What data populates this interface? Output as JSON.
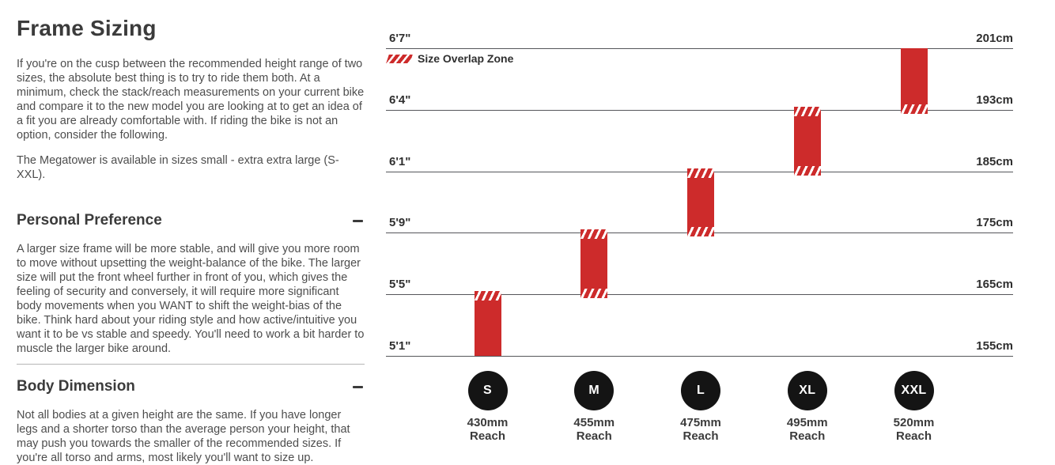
{
  "left": {
    "title": "Frame Sizing",
    "intro": "If you're on the cusp between the recommended height range of two sizes, the absolute best thing is to try to ride them both. At a minimum, check the stack/reach measurements on your current bike and compare it to the new model you are looking at to get an idea of a fit you are already comfortable with. If riding the bike is not an option, consider the following.",
    "availability": "The Megatower is available in sizes small - extra extra large (S-XXL).",
    "sections": [
      {
        "heading": "Personal Preference",
        "toggle_state": "expanded",
        "body": "A larger size frame will be more stable, and will give you more room to move without upsetting the weight-balance of the bike. The larger size will put the front wheel further in front of you, which gives the feeling of security and conversely, it will require more significant body movements when you WANT to shift the weight-bias of the bike. Think hard about your riding style and how active/intuitive you want it to be vs stable and speedy. You'll need to work a bit harder to muscle the larger bike around."
      },
      {
        "heading": "Body Dimension",
        "toggle_state": "expanded",
        "body": "Not all bodies at a given height are the same. If you have longer legs and a shorter torso than the average person your height, that may push you towards the smaller of the recommended sizes. If you're all torso and arms, most likely you'll want to size up."
      }
    ]
  },
  "chart_data": {
    "type": "bar",
    "subtype": "vertical-range-bars",
    "title": "",
    "legend": {
      "label": "Size Overlap Zone",
      "position": "top-left",
      "swatch": "red-white-diagonal-hatch"
    },
    "grid": true,
    "height_lines": [
      {
        "ft": "6'7\"",
        "cm": "201cm"
      },
      {
        "ft": "6'4\"",
        "cm": "193cm"
      },
      {
        "ft": "6'1\"",
        "cm": "185cm"
      },
      {
        "ft": "5'9\"",
        "cm": "175cm"
      },
      {
        "ft": "5'5\"",
        "cm": "165cm"
      },
      {
        "ft": "5'1\"",
        "cm": "155cm"
      }
    ],
    "sizes": [
      {
        "label": "S",
        "reach": "430mm",
        "reach_mm": 430,
        "reach_caption": "Reach",
        "height_from_ft": "5'1\"",
        "height_to_ft": "5'5\"",
        "height_from_cm": 155,
        "height_to_cm": 165,
        "overlap_top": true,
        "overlap_bottom": false
      },
      {
        "label": "M",
        "reach": "455mm",
        "reach_mm": 455,
        "reach_caption": "Reach",
        "height_from_ft": "5'5\"",
        "height_to_ft": "5'9\"",
        "height_from_cm": 165,
        "height_to_cm": 175,
        "overlap_top": true,
        "overlap_bottom": true
      },
      {
        "label": "L",
        "reach": "475mm",
        "reach_mm": 475,
        "reach_caption": "Reach",
        "height_from_ft": "5'9\"",
        "height_to_ft": "6'1\"",
        "height_from_cm": 175,
        "height_to_cm": 185,
        "overlap_top": true,
        "overlap_bottom": true
      },
      {
        "label": "XL",
        "reach": "495mm",
        "reach_mm": 495,
        "reach_caption": "Reach",
        "height_from_ft": "6'1\"",
        "height_to_ft": "6'4\"",
        "height_from_cm": 185,
        "height_to_cm": 193,
        "overlap_top": true,
        "overlap_bottom": true
      },
      {
        "label": "XXL",
        "reach": "520mm",
        "reach_mm": 520,
        "reach_caption": "Reach",
        "height_from_ft": "6'4\"",
        "height_to_ft": "6'7\"",
        "height_from_cm": 193,
        "height_to_cm": 201,
        "overlap_top": false,
        "overlap_bottom": true
      }
    ],
    "colors": {
      "bar_red": "#cd2b2b",
      "gridline": "#55565a",
      "circle_black": "#141414",
      "text_dark": "#3b3b3b"
    }
  }
}
